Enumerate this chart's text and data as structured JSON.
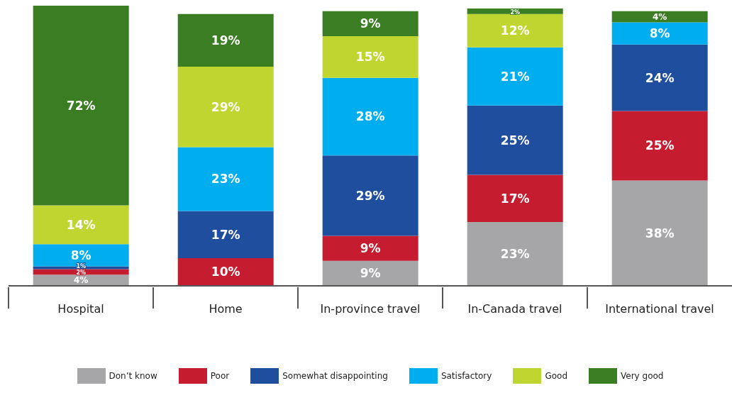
{
  "chart_data": {
    "type": "bar",
    "stacked": true,
    "legend": "bottom",
    "grid": false,
    "categories": [
      "Hospital",
      "Home",
      "In-province travel",
      "In-Canada travel",
      "International travel"
    ],
    "series": [
      {
        "name": "Don’t know",
        "color": "#a6a6a8",
        "values": [
          4,
          null,
          9,
          23,
          38
        ],
        "value_labels": [
          "4%",
          null,
          "9%",
          "23%",
          "38%"
        ]
      },
      {
        "name": "Poor",
        "color": "#c51c30",
        "values": [
          2,
          10,
          9,
          17,
          25
        ],
        "value_labels": [
          "2%",
          "10%",
          "9%",
          "17%",
          "25%"
        ]
      },
      {
        "name": "Somewhat disappointing",
        "color": "#1f4e9f",
        "values": [
          1,
          17,
          29,
          25,
          24
        ],
        "value_labels": [
          "1%",
          "17%",
          "29%",
          "25%",
          "24%"
        ]
      },
      {
        "name": "Satisfactory",
        "color": "#00aeef",
        "values": [
          8,
          23,
          28,
          21,
          8
        ],
        "value_labels": [
          "8%",
          "23%",
          "28%",
          "21%",
          "8%"
        ]
      },
      {
        "name": "Good",
        "color": "#bfd630",
        "values": [
          14,
          29,
          15,
          12,
          null
        ],
        "value_labels": [
          "14%",
          "29%",
          "15%",
          "12%",
          null
        ]
      },
      {
        "name": "Very good",
        "color": "#3a7d22",
        "values": [
          72,
          19,
          9,
          2,
          4
        ],
        "value_labels": [
          "72%",
          "19%",
          "9%",
          "2%",
          "4%"
        ]
      }
    ]
  }
}
